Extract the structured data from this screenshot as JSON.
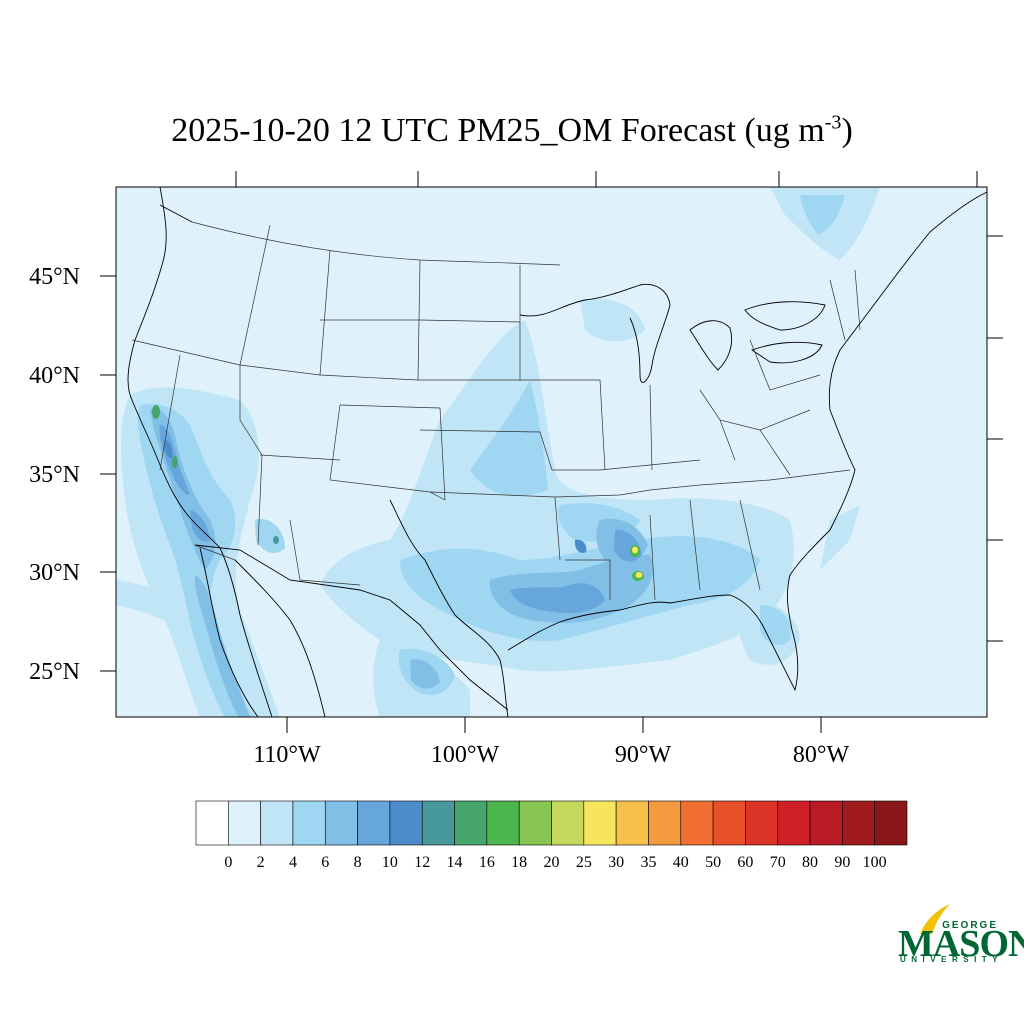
{
  "title": {
    "main": "2025-10-20 12 UTC PM25_OM Forecast (ug m",
    "exponent": "-3",
    "close": ")"
  },
  "lat_labels": [
    "45°N",
    "40°N",
    "35°N",
    "30°N",
    "25°N"
  ],
  "lon_labels": [
    "110°W",
    "100°W",
    "90°W",
    "80°W"
  ],
  "colorbar": {
    "levels": [
      "0",
      "2",
      "4",
      "6",
      "8",
      "10",
      "12",
      "14",
      "16",
      "18",
      "20",
      "25",
      "30",
      "35",
      "40",
      "50",
      "60",
      "70",
      "80",
      "90",
      "100"
    ],
    "colors": [
      "#ffffff",
      "#dff1fa",
      "#bfe5f6",
      "#9fd6f2",
      "#82bfe6",
      "#66a6dc",
      "#4c8cca",
      "#47999c",
      "#45a56c",
      "#4bb64d",
      "#87c650",
      "#c3d85c",
      "#f7e55d",
      "#f7c04a",
      "#f59a3e",
      "#f06f31",
      "#e8502a",
      "#dc3327",
      "#cf1f27",
      "#b91a24",
      "#a01a1e",
      "#8a161a"
    ]
  },
  "logo": {
    "george": "GEORGE",
    "mason": "MASON",
    "university": "UNIVERSITY",
    "brand_color": "#006633",
    "accent_color": "#f2c200"
  },
  "map": {
    "ocean_color": "#dff1fa",
    "boundary_color": "#000000"
  }
}
